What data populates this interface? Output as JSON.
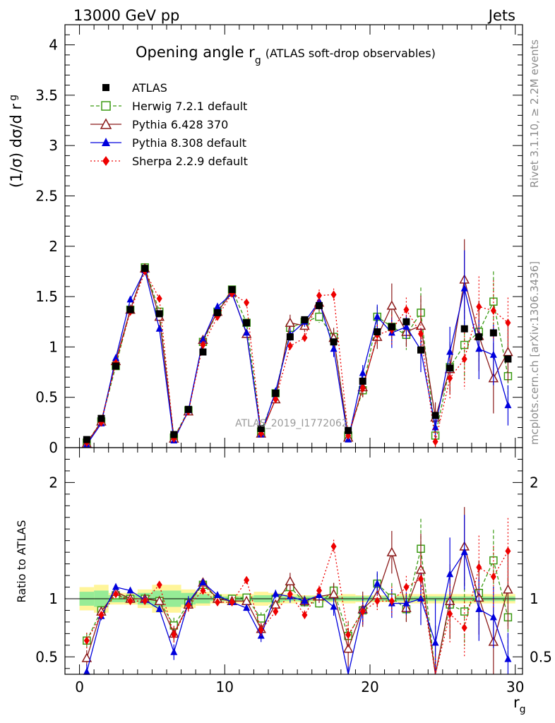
{
  "header": {
    "left": "13000 GeV pp",
    "right": "Jets"
  },
  "side_text": {
    "top": "Rivet 3.1.10, ≥ 2.2M events",
    "bottom": "mcplots.cern.ch [arXiv:1306.3436]"
  },
  "chart_data": {
    "type": "scatter",
    "title_main": "Opening angle r",
    "title_sub": "g",
    "title_suffix": "(ATLAS soft-drop observables)",
    "watermark": "ATLAS_2019_I1772062",
    "ylabel_main": "(1/σ) dσ/d r",
    "ylabel_sub": "g",
    "ratio_ylabel": "Ratio to ATLAS",
    "xlabel_main": "r",
    "xlabel_sub": "g",
    "xlim": [
      -1,
      30.5
    ],
    "ylim_main": [
      0,
      4.2
    ],
    "ylim_ratio": [
      0.35,
      2.3
    ],
    "x_ticks": [
      "0",
      "10",
      "20",
      "30"
    ],
    "y_ticks_main": [
      "0",
      "0.5",
      "1",
      "1.5",
      "2",
      "2.5",
      "3",
      "3.5",
      "4"
    ],
    "y_ticks_ratio": [
      "0.5",
      "1",
      "2"
    ],
    "x": [
      0.5,
      1.5,
      2.5,
      3.5,
      4.5,
      5.5,
      6.5,
      7.5,
      8.5,
      9.5,
      10.5,
      11.5,
      12.5,
      13.5,
      14.5,
      15.5,
      16.5,
      17.5,
      18.5,
      19.5,
      20.5,
      21.5,
      22.5,
      23.5,
      24.5,
      25.5,
      26.5,
      27.5,
      28.5,
      29.5
    ],
    "series": [
      {
        "name": "ATLAS",
        "color": "#000000",
        "marker": "square-filled",
        "values": [
          0.08,
          0.29,
          0.81,
          1.37,
          1.78,
          1.33,
          0.13,
          0.38,
          0.95,
          1.34,
          1.57,
          1.24,
          0.19,
          0.54,
          1.1,
          1.27,
          1.41,
          1.05,
          0.17,
          0.66,
          1.15,
          1.2,
          1.25,
          0.97,
          0.32,
          0.79,
          1.18,
          1.1,
          1.14,
          0.88
        ],
        "ratio_band_outer": [
          0.1,
          0.12,
          0.05,
          0.05,
          0.08,
          0.12,
          0.12,
          0.08,
          0.06,
          0.04,
          0.04,
          0.04,
          0.06,
          0.05,
          0.04,
          0.03,
          0.03,
          0.03,
          0.04,
          0.03,
          0.03,
          0.03,
          0.04,
          0.04,
          0.04,
          0.04,
          0.04,
          0.04,
          0.04,
          0.04
        ],
        "ratio_band_inner": [
          0.06,
          0.07,
          0.03,
          0.03,
          0.05,
          0.07,
          0.07,
          0.05,
          0.04,
          0.02,
          0.02,
          0.02,
          0.03,
          0.03,
          0.02,
          0.02,
          0.02,
          0.02,
          0.02,
          0.02,
          0.02,
          0.02,
          0.02,
          0.02,
          0.02,
          0.02,
          0.02,
          0.02,
          0.02,
          0.02
        ]
      },
      {
        "name": "Herwig 7.2.1 default",
        "color": "#3a9a12",
        "marker": "square-open",
        "dash": "5,3",
        "values": [
          0.05,
          0.26,
          0.81,
          1.37,
          1.79,
          1.35,
          0.1,
          0.37,
          1.05,
          1.35,
          1.57,
          1.24,
          0.16,
          0.54,
          1.19,
          1.25,
          1.3,
          1.1,
          0.12,
          0.57,
          1.3,
          1.2,
          1.12,
          1.34,
          0.12,
          0.8,
          1.02,
          1.15,
          1.45,
          0.71
        ],
        "err": [
          0.01,
          0.01,
          0.02,
          0.02,
          0.02,
          0.02,
          0.01,
          0.02,
          0.02,
          0.02,
          0.02,
          0.02,
          0.01,
          0.02,
          0.05,
          0.04,
          0.06,
          0.07,
          0.02,
          0.08,
          0.1,
          0.15,
          0.15,
          0.25,
          0.15,
          0.25,
          0.35,
          0.3,
          0.3,
          0.3
        ]
      },
      {
        "name": "Pythia 6.428 370",
        "color": "#8b1a1a",
        "marker": "triangle-open",
        "dash": "",
        "values": [
          0.04,
          0.26,
          0.86,
          1.37,
          1.78,
          1.3,
          0.09,
          0.36,
          1.07,
          1.35,
          1.54,
          1.13,
          0.14,
          0.48,
          1.24,
          1.21,
          1.44,
          1.09,
          0.1,
          0.6,
          1.1,
          1.41,
          1.15,
          1.21,
          0.3,
          0.78,
          1.67,
          1.11,
          0.69,
          0.95
        ],
        "err": [
          0.01,
          0.01,
          0.02,
          0.02,
          0.02,
          0.02,
          0.01,
          0.02,
          0.02,
          0.02,
          0.02,
          0.02,
          0.01,
          0.02,
          0.08,
          0.06,
          0.08,
          0.1,
          0.03,
          0.1,
          0.12,
          0.22,
          0.15,
          0.3,
          0.15,
          0.25,
          0.4,
          0.35,
          0.35,
          0.3
        ]
      },
      {
        "name": "Pythia 8.308 default",
        "color": "#0000dd",
        "marker": "triangle-filled",
        "dash": "",
        "values": [
          0.03,
          0.24,
          0.89,
          1.47,
          1.76,
          1.18,
          0.07,
          0.37,
          1.07,
          1.4,
          1.53,
          1.14,
          0.13,
          0.56,
          1.12,
          1.25,
          1.45,
          0.98,
          0.08,
          0.74,
          1.3,
          1.14,
          1.2,
          0.97,
          0.2,
          0.95,
          1.58,
          0.98,
          0.92,
          0.42
        ],
        "err": [
          0.01,
          0.01,
          0.02,
          0.02,
          0.02,
          0.02,
          0.01,
          0.02,
          0.02,
          0.02,
          0.02,
          0.02,
          0.01,
          0.02,
          0.06,
          0.05,
          0.06,
          0.08,
          0.02,
          0.08,
          0.12,
          0.15,
          0.12,
          0.22,
          0.12,
          0.25,
          0.38,
          0.3,
          0.3,
          0.2
        ]
      },
      {
        "name": "Sherpa 2.2.9 default",
        "color": "#ee0000",
        "marker": "diamond-filled",
        "dash": "2,3",
        "values": [
          0.05,
          0.25,
          0.84,
          1.35,
          1.75,
          1.48,
          0.09,
          0.36,
          1.02,
          1.3,
          1.53,
          1.44,
          0.14,
          0.48,
          1.01,
          1.09,
          1.51,
          1.52,
          0.12,
          0.59,
          1.12,
          1.17,
          1.37,
          1.13,
          0.06,
          0.69,
          0.88,
          1.4,
          1.36,
          1.24
        ],
        "err": [
          0.01,
          0.01,
          0.02,
          0.02,
          0.02,
          0.02,
          0.01,
          0.02,
          0.02,
          0.02,
          0.02,
          0.02,
          0.01,
          0.02,
          0.04,
          0.05,
          0.06,
          0.06,
          0.02,
          0.08,
          0.1,
          0.15,
          0.12,
          0.2,
          0.1,
          0.2,
          0.3,
          0.3,
          0.3,
          0.25
        ]
      }
    ],
    "ratios": {
      "Herwig 7.2.1 default": [
        0.64,
        0.9,
        1.03,
        1.0,
        1.0,
        0.98,
        0.77,
        0.96,
        1.12,
        1.0,
        1.0,
        1.01,
        0.83,
        1.0,
        1.1,
        0.97,
        0.96,
        1.07,
        0.68,
        0.9,
        1.13,
        1.01,
        0.91,
        1.43,
        0.3,
        0.95,
        0.89,
        1.05,
        1.33,
        0.84
      ],
      "Pythia 6.428 370": [
        0.49,
        0.89,
        1.06,
        1.0,
        1.0,
        0.98,
        0.7,
        0.95,
        1.14,
        1.0,
        0.98,
        0.98,
        0.74,
        0.95,
        1.15,
        0.98,
        1.02,
        1.04,
        0.57,
        0.91,
        1.03,
        1.4,
        0.92,
        1.25,
        0.3,
        0.98,
        1.45,
        1.01,
        0.63,
        1.08
      ],
      "Pythia 8.308 default": [
        0.37,
        0.85,
        1.1,
        1.07,
        0.99,
        0.91,
        0.54,
        0.97,
        1.14,
        1.03,
        0.97,
        0.92,
        0.68,
        1.04,
        1.02,
        0.98,
        1.03,
        0.93,
        0.3,
        0.9,
        1.13,
        0.96,
        0.96,
        1.0,
        0.62,
        1.21,
        1.4,
        0.91,
        0.84,
        0.48
      ],
      "Sherpa 2.2.9 default": [
        0.64,
        0.86,
        1.04,
        0.98,
        0.98,
        1.12,
        0.69,
        0.94,
        1.07,
        0.97,
        0.97,
        1.16,
        0.73,
        0.89,
        1.04,
        0.86,
        1.07,
        1.45,
        0.69,
        0.89,
        0.98,
        0.98,
        1.1,
        1.17,
        0.19,
        0.87,
        0.75,
        1.27,
        1.19,
        1.41
      ]
    }
  }
}
